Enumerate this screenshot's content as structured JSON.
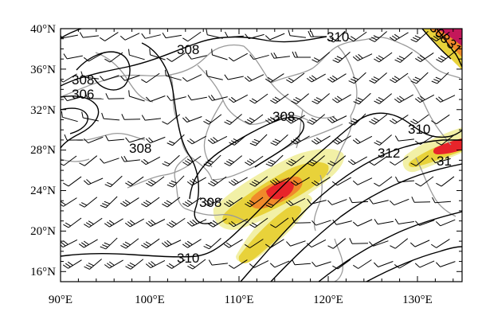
{
  "map": {
    "lat_labels": [
      "40°N",
      "36°N",
      "32°N",
      "28°N",
      "24°N",
      "20°N",
      "16°N"
    ],
    "lon_labels": [
      "90°E",
      "100°E",
      "110°E",
      "120°E",
      "130°E"
    ],
    "lon_range": [
      90,
      135
    ],
    "lat_range": [
      15,
      40
    ],
    "contour_labels": [
      "310",
      "308",
      "308",
      "306",
      "308",
      "308",
      "308",
      "310",
      "312",
      "310",
      "31",
      "308",
      "31"
    ],
    "colors": {
      "shade_light": "#f2f0a6",
      "shade_yellow": "#e8d23a",
      "shade_orange": "#f08a2a",
      "shade_red": "#e8242a",
      "shade_magenta": "#c4175a",
      "contour": "#000000",
      "border": "#9a9a9a",
      "barb": "#000000"
    }
  }
}
